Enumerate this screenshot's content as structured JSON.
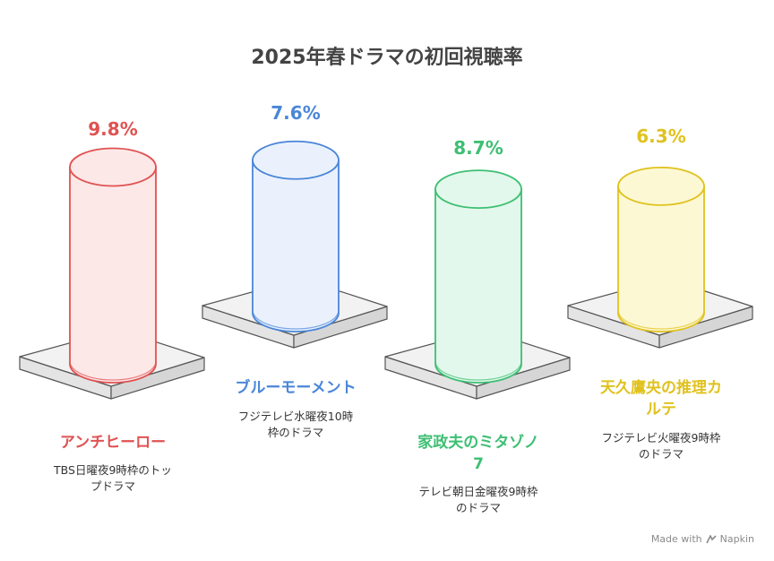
{
  "chart_data": {
    "type": "bar",
    "title": "2025年春ドラマの初回視聴率",
    "categories": [
      "アンチヒーロー",
      "ブルーモーメント",
      "家政夫のミタゾノ7",
      "天久鷹央の推理カルテ"
    ],
    "values": [
      9.8,
      7.6,
      8.7,
      6.3
    ],
    "value_labels": [
      "9.8%",
      "7.6%",
      "8.7%",
      "6.3%"
    ],
    "descriptions": [
      "TBS日曜夜9時枠のトップドラマ",
      "フジテレビ水曜夜10時枠のドラマ",
      "テレビ朝日金曜夜9時枠のドラマ",
      "フジテレビ火曜夜9時枠のドラマ"
    ],
    "colors": [
      "#e05252",
      "#4a86d8",
      "#3dbf73",
      "#e0c21e"
    ],
    "fill_colors": [
      "#fde8e8",
      "#eaf1fd",
      "#e3f8ec",
      "#fdf8d4"
    ]
  },
  "footer": {
    "text": "Made with",
    "brand": "Napkin"
  }
}
